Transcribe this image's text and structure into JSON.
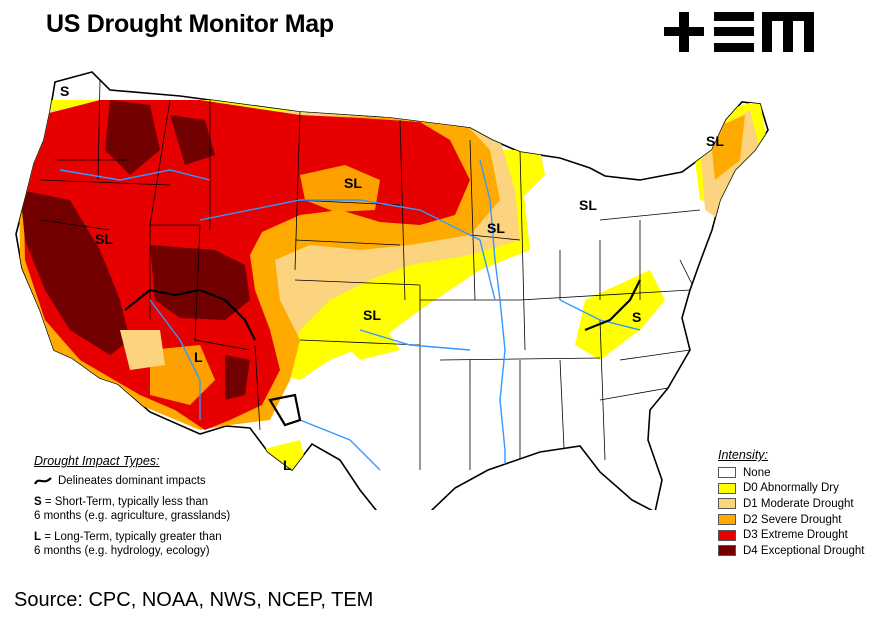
{
  "title": "US Drought Monitor Map",
  "logo_text": "+ΞM",
  "source": "Source: CPC, NOAA, NWS, NCEP, TEM",
  "impact": {
    "heading": "Drought Impact Types:",
    "delineates": "Delineates dominant impacts",
    "s_key": "S",
    "s_text": " = Short-Term, typically less than",
    "s_text2": "6 months (e.g. agriculture, grasslands)",
    "l_key": "L",
    "l_text": " = Long-Term, typically greater than",
    "l_text2": "6 months (e.g. hydrology, ecology)"
  },
  "legend": {
    "heading": "Intensity:",
    "items": [
      {
        "label": "None",
        "color": "#ffffff"
      },
      {
        "label": "D0 Abnormally Dry",
        "color": "#ffff00"
      },
      {
        "label": "D1 Moderate Drought",
        "color": "#fcd37f"
      },
      {
        "label": "D2 Severe Drought",
        "color": "#ffaa00"
      },
      {
        "label": "D3 Extreme Drought",
        "color": "#e60000"
      },
      {
        "label": "D4 Exceptional Drought",
        "color": "#730000"
      }
    ]
  },
  "map_labels": [
    "S",
    "SL",
    "SL",
    "SL",
    "SL",
    "SL",
    "SL",
    "S",
    "L",
    "L"
  ]
}
